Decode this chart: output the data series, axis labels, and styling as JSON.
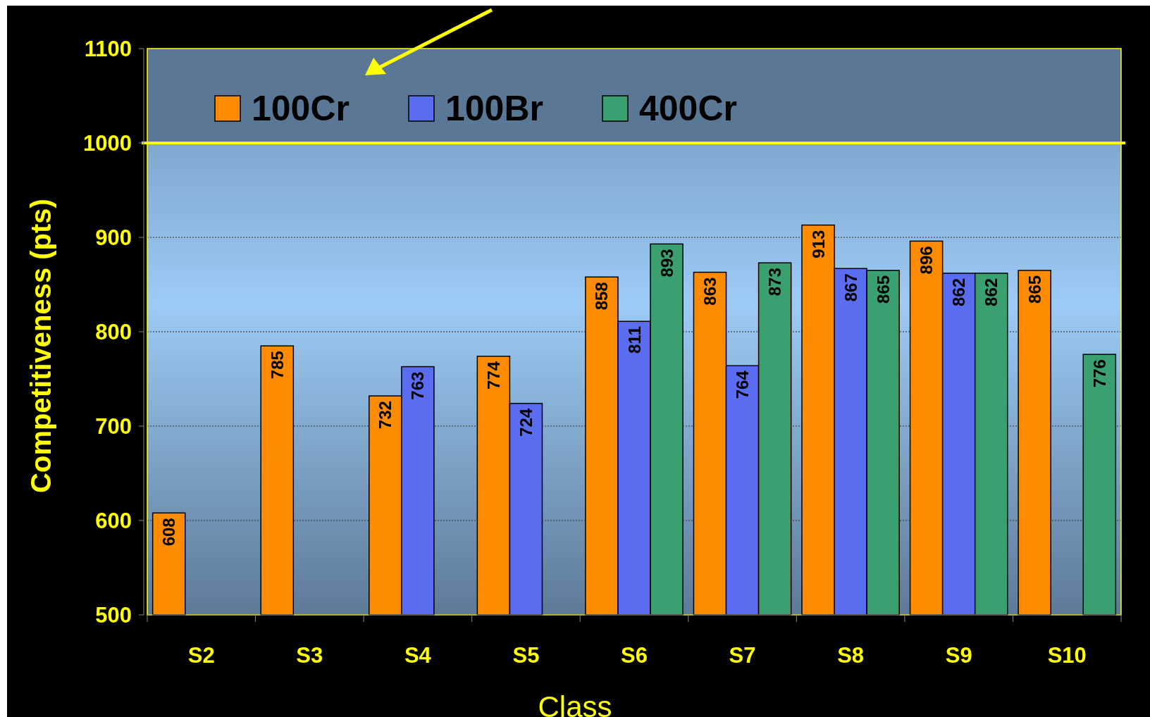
{
  "chart_data": {
    "type": "bar",
    "xlabel": "Class",
    "ylabel": "Competitiveness (pts)",
    "categories": [
      "S2",
      "S3",
      "S4",
      "S5",
      "S6",
      "S7",
      "S8",
      "S9",
      "S10"
    ],
    "series": [
      {
        "name": "100Cr",
        "color": "#ff8c00",
        "values": [
          608,
          785,
          732,
          774,
          858,
          863,
          913,
          896,
          865
        ]
      },
      {
        "name": "100Br",
        "color": "#5a6cf0",
        "values": [
          null,
          null,
          763,
          724,
          811,
          764,
          867,
          862,
          null
        ]
      },
      {
        "name": "400Cr",
        "color": "#3aa070",
        "values": [
          null,
          null,
          null,
          null,
          893,
          873,
          865,
          862,
          776
        ]
      }
    ],
    "ylim": [
      500,
      1100
    ],
    "yticks": [
      500,
      600,
      700,
      800,
      900,
      1000,
      1100
    ],
    "grid": "y",
    "legend": "top left",
    "data_labels": true,
    "ref_lines": [
      {
        "axis": "y",
        "value": 1000,
        "color": "#ffff00"
      }
    ],
    "bands": [
      {
        "axis": "y",
        "from": 1000,
        "to": 1100,
        "color": "#5a7896"
      }
    ]
  }
}
